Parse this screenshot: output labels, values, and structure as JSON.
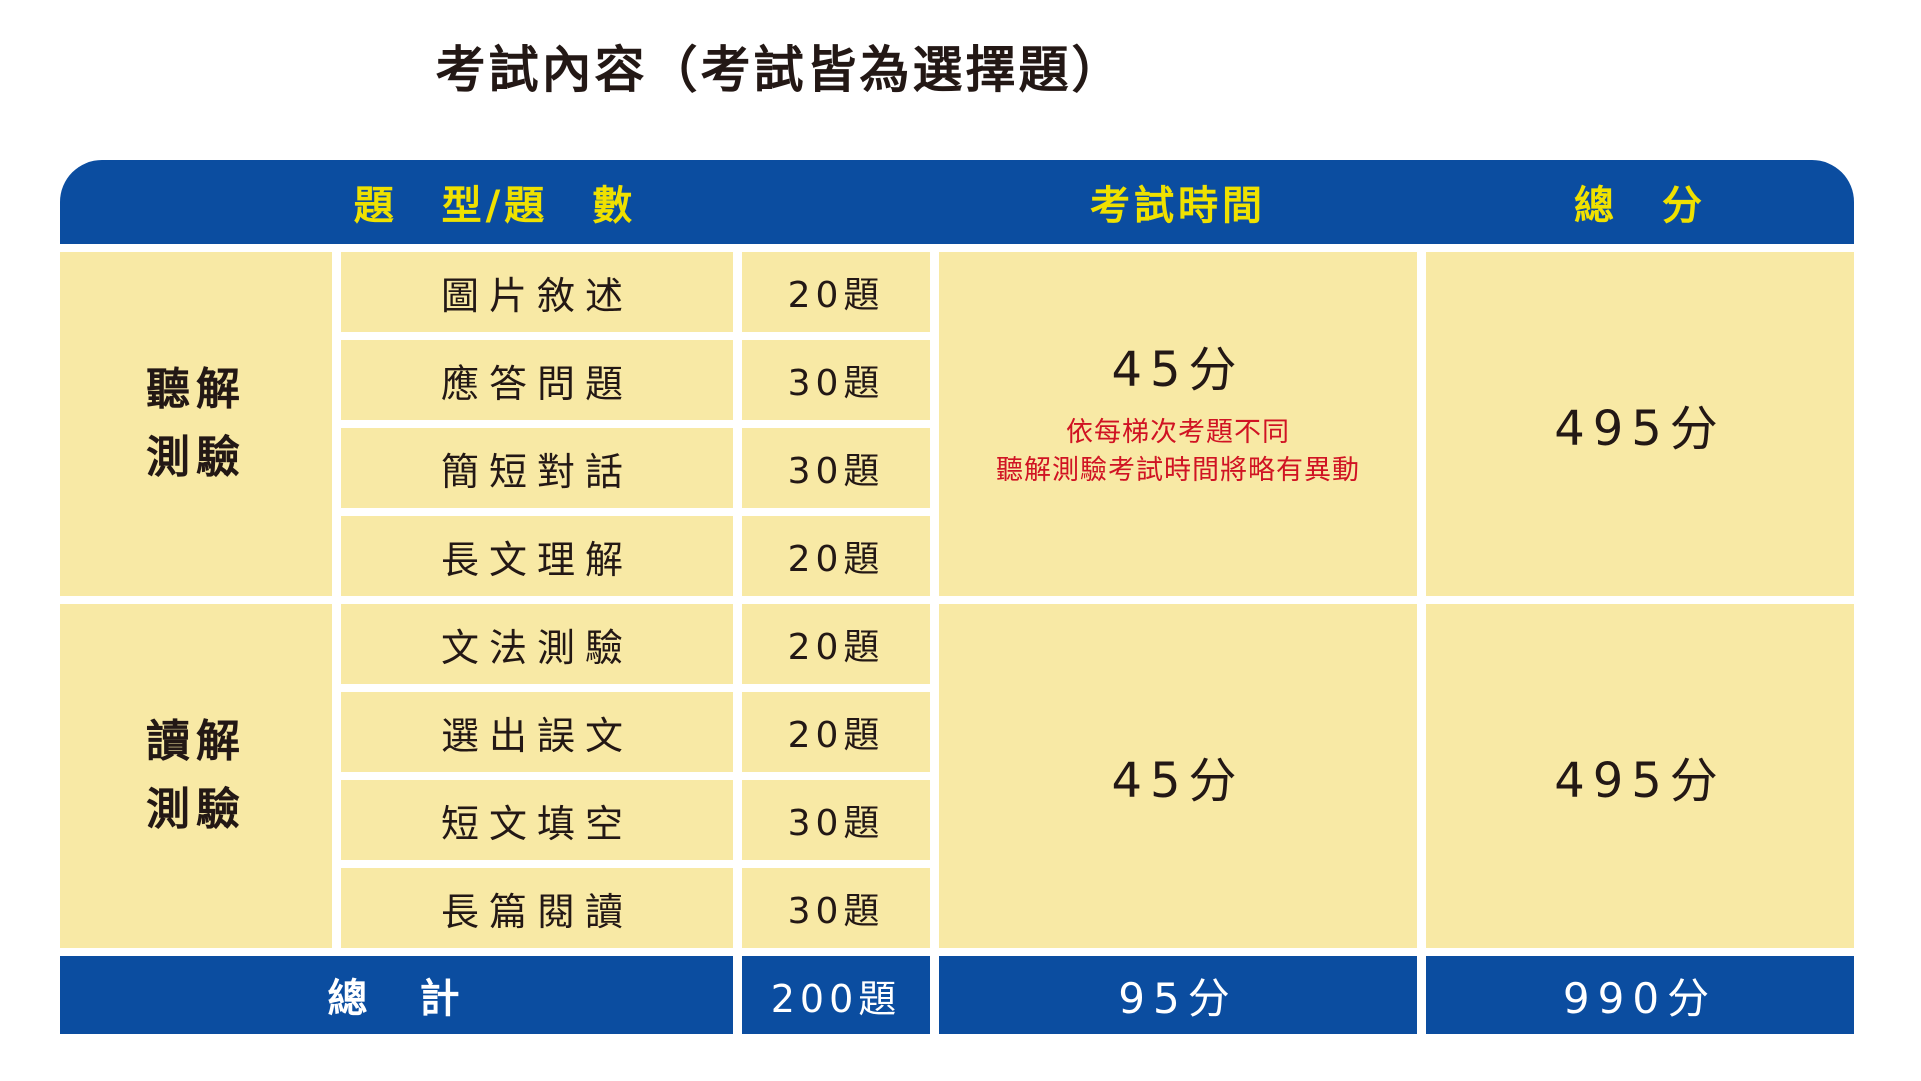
{
  "page": {
    "title": "考試內容（考試皆為選擇題）"
  },
  "colors": {
    "header_footer_blue": "#0b4da0",
    "cell_yellow": "#f8e9a5",
    "header_label_yellow": "#efe100",
    "body_text": "#231815",
    "note_red": "#d01323",
    "footer_text": "#ffffff"
  },
  "table": {
    "header": {
      "type_count": "題　型/題　數",
      "time": "考試時間",
      "score": "總　分"
    },
    "sections": [
      {
        "name": "聽解\n測驗",
        "rows": [
          {
            "subject": "圖片敘述",
            "count": "20題"
          },
          {
            "subject": "應答問題",
            "count": "30題"
          },
          {
            "subject": "簡短對話",
            "count": "30題"
          },
          {
            "subject": "長文理解",
            "count": "20題"
          }
        ],
        "time": "45分",
        "note_line1": "依每梯次考題不同",
        "note_line2": "聽解測驗考試時間將略有異動",
        "score": "495分"
      },
      {
        "name": "讀解\n測驗",
        "rows": [
          {
            "subject": "文法測驗",
            "count": "20題"
          },
          {
            "subject": "選出誤文",
            "count": "20題"
          },
          {
            "subject": "短文填空",
            "count": "30題"
          },
          {
            "subject": "長篇閱讀",
            "count": "30題"
          }
        ],
        "time": "45分",
        "score": "495分"
      }
    ],
    "footer": {
      "label": "總　計",
      "count": "200題",
      "time": "95分",
      "score": "990分"
    }
  },
  "chart_data": {
    "type": "table",
    "title": "考試內容（考試皆為選擇題）",
    "columns": [
      "測驗",
      "題型",
      "題數",
      "考試時間",
      "總分"
    ],
    "rows": [
      [
        "聽解測驗",
        "圖片敘述",
        "20題",
        "45分（依每梯次考題不同 聽解測驗考試時間將略有異動）",
        "495分"
      ],
      [
        "聽解測驗",
        "應答問題",
        "30題",
        "45分（依每梯次考題不同 聽解測驗考試時間將略有異動）",
        "495分"
      ],
      [
        "聽解測驗",
        "簡短對話",
        "30題",
        "45分（依每梯次考題不同 聽解測驗考試時間將略有異動）",
        "495分"
      ],
      [
        "聽解測驗",
        "長文理解",
        "20題",
        "45分（依每梯次考題不同 聽解測驗考試時間將略有異動）",
        "495分"
      ],
      [
        "讀解測驗",
        "文法測驗",
        "20題",
        "45分",
        "495分"
      ],
      [
        "讀解測驗",
        "選出誤文",
        "20題",
        "45分",
        "495分"
      ],
      [
        "讀解測驗",
        "短文填空",
        "30題",
        "45分",
        "495分"
      ],
      [
        "讀解測驗",
        "長篇閱讀",
        "30題",
        "45分",
        "495分"
      ],
      [
        "總計",
        "",
        "200題",
        "95分",
        "990分"
      ]
    ]
  }
}
